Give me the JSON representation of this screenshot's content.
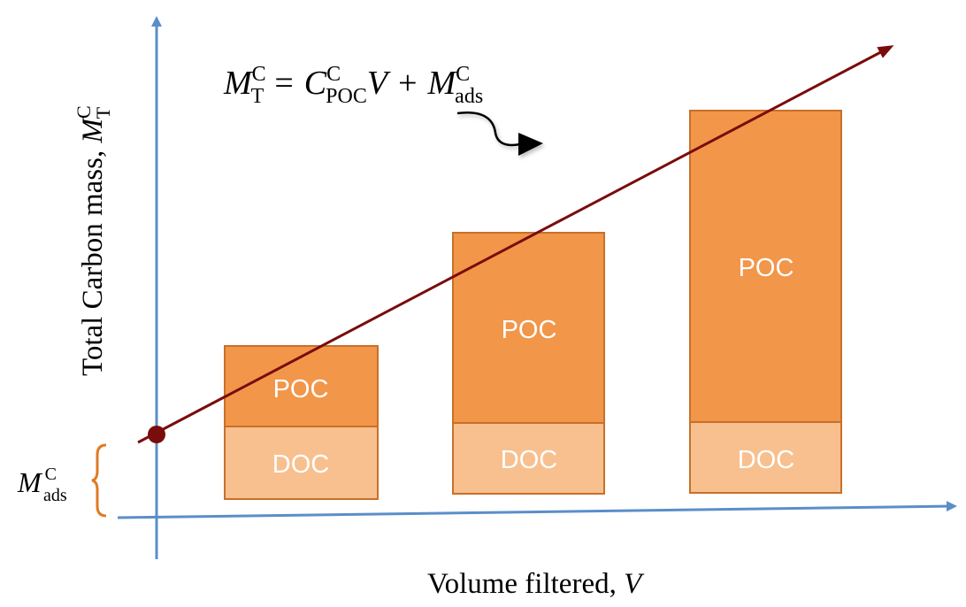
{
  "diagram": {
    "equation": {
      "lhs_symbol": "M",
      "lhs_sup": "C",
      "lhs_sub": "T",
      "equals": "=",
      "term1_symbol": "C",
      "term1_sup": "C",
      "term1_sub": "POC",
      "term1_var": "V",
      "plus": "+",
      "term2_symbol": "M",
      "term2_sup": "C",
      "term2_sub": "ads"
    },
    "y_axis_label": {
      "text": "Total Carbon mass, ",
      "symbol": "M",
      "sup": "C",
      "sub": "T"
    },
    "x_axis_label": {
      "text": "Volume filtered, ",
      "symbol": "V"
    },
    "intercept_label": {
      "symbol": "M",
      "sup": "C",
      "sub": "ads"
    },
    "bars": [
      {
        "top_label": "POC",
        "bottom_label": "DOC"
      },
      {
        "top_label": "POC",
        "bottom_label": "DOC"
      },
      {
        "top_label": "POC",
        "bottom_label": "DOC"
      }
    ],
    "colors": {
      "axis": "#5b8ec9",
      "poc_fill": "#f2964a",
      "doc_fill": "#f8c08f",
      "bar_stroke": "#c8702a",
      "trend_line": "#7a0c0c",
      "intercept_bracket": "#e07a25",
      "bar_text": "#ffffff",
      "pointer_arrow": "#000000"
    }
  }
}
